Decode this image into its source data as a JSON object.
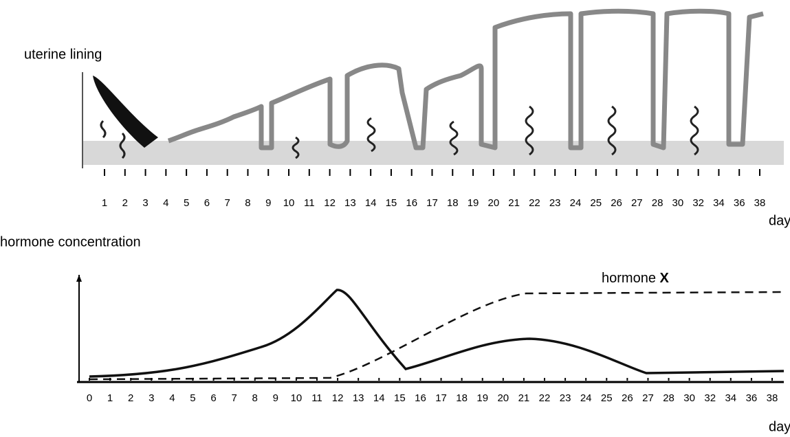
{
  "top_panel": {
    "label": "uterine lining",
    "days": [
      "1",
      "2",
      "3",
      "4",
      "5",
      "6",
      "7",
      "8",
      "9",
      "10",
      "11",
      "12",
      "13",
      "14",
      "15",
      "16",
      "17",
      "18",
      "19",
      "20",
      "21",
      "22",
      "23",
      "24",
      "25",
      "26",
      "27",
      "28",
      "30",
      "32",
      "34",
      "36",
      "38"
    ],
    "axis_label": "days"
  },
  "hormone_panel": {
    "label": "hormone concentration",
    "series_label": {
      "text": "hormone",
      "bold": "X"
    },
    "days": [
      "0",
      "1",
      "2",
      "3",
      "4",
      "5",
      "6",
      "7",
      "8",
      "9",
      "10",
      "11",
      "12",
      "13",
      "14",
      "15",
      "16",
      "17",
      "18",
      "19",
      "20",
      "21",
      "22",
      "23",
      "24",
      "25",
      "26",
      "27",
      "28",
      "30",
      "32",
      "34",
      "36",
      "38"
    ],
    "axis_label": "days"
  }
}
